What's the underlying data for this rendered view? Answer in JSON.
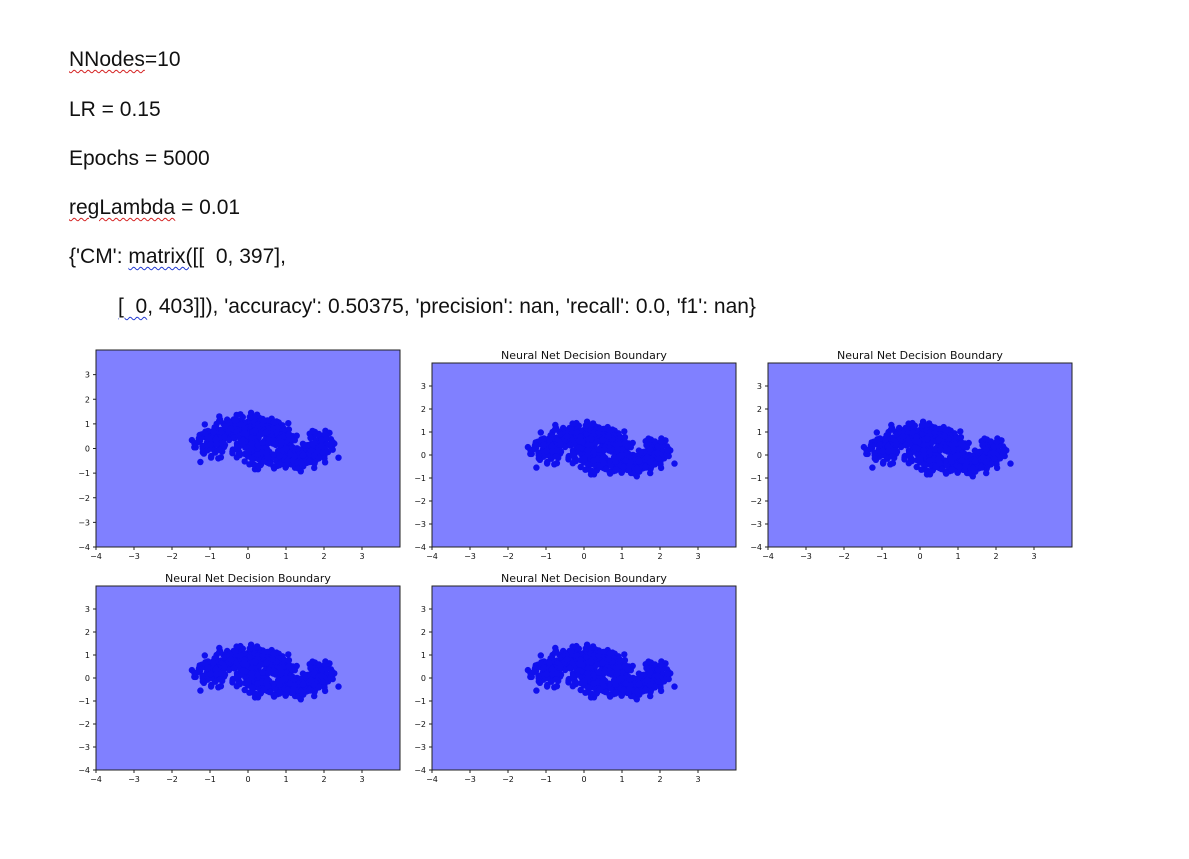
{
  "document": {
    "lines": {
      "nnodes_word": "NNodes",
      "nnodes_rest": "=10",
      "lr": "LR = 0.15",
      "epochs": "Epochs = 5000",
      "reglambda_word": "regLambda",
      "reglambda_rest": " = 0.01",
      "cm_prefix": "{'CM': ",
      "cm_word": "matrix([[",
      "cm_rest": "  0, 397],",
      "row2_word": "[  0",
      "row2_rest": ", 403]]), 'accuracy': 0.50375, 'precision': nan, 'recall': 0.0, 'f1': nan}"
    }
  },
  "chart_data": [
    {
      "type": "scatter",
      "title": "",
      "xlim": [
        -4,
        4
      ],
      "ylim": [
        -4,
        4
      ],
      "xticks": [
        "−4",
        "−3",
        "−2",
        "−1",
        "0",
        "1",
        "2",
        "3"
      ],
      "yticks": [
        "3",
        "2",
        "1",
        "0",
        "−1",
        "−2",
        "−3",
        "−4"
      ],
      "background_color": "#8080ff",
      "point_color": "#1010ee",
      "description_shape": "two interleaving moons (make_moons style) with noise",
      "x_range": [
        -1.5,
        2.5
      ],
      "y_range": [
        -1.0,
        1.7
      ]
    },
    {
      "type": "scatter",
      "title": "Neural Net Decision Boundary",
      "xlim": [
        -4,
        4
      ],
      "ylim": [
        -4,
        4
      ],
      "xticks": [
        "−4",
        "−3",
        "−2",
        "−1",
        "0",
        "1",
        "2",
        "3"
      ],
      "yticks": [
        "3",
        "2",
        "1",
        "0",
        "−1",
        "−2",
        "−3",
        "−4"
      ],
      "background_color": "#8080ff",
      "point_color": "#1010ee"
    },
    {
      "type": "scatter",
      "title": "Neural Net Decision Boundary",
      "xlim": [
        -4,
        4
      ],
      "ylim": [
        -4,
        4
      ],
      "xticks": [
        "−4",
        "−3",
        "−2",
        "−1",
        "0",
        "1",
        "2",
        "3"
      ],
      "yticks": [
        "3",
        "2",
        "1",
        "0",
        "−1",
        "−2",
        "−3",
        "−4"
      ],
      "background_color": "#8080ff",
      "point_color": "#1010ee"
    },
    {
      "type": "scatter",
      "title": "Neural Net Decision Boundary",
      "xlim": [
        -4,
        4
      ],
      "ylim": [
        -4,
        4
      ],
      "xticks": [
        "−4",
        "−3",
        "−2",
        "−1",
        "0",
        "1",
        "2",
        "3"
      ],
      "yticks": [
        "3",
        "2",
        "1",
        "0",
        "−1",
        "−2",
        "−3",
        "−4"
      ],
      "background_color": "#8080ff",
      "point_color": "#1010ee"
    },
    {
      "type": "scatter",
      "title": "Neural Net Decision Boundary",
      "xlim": [
        -4,
        4
      ],
      "ylim": [
        -4,
        4
      ],
      "xticks": [
        "−4",
        "−3",
        "−2",
        "−1",
        "0",
        "1",
        "2",
        "3"
      ],
      "yticks": [
        "3",
        "2",
        "1",
        "0",
        "−1",
        "−2",
        "−3",
        "−4"
      ],
      "background_color": "#8080ff",
      "point_color": "#1010ee"
    }
  ]
}
